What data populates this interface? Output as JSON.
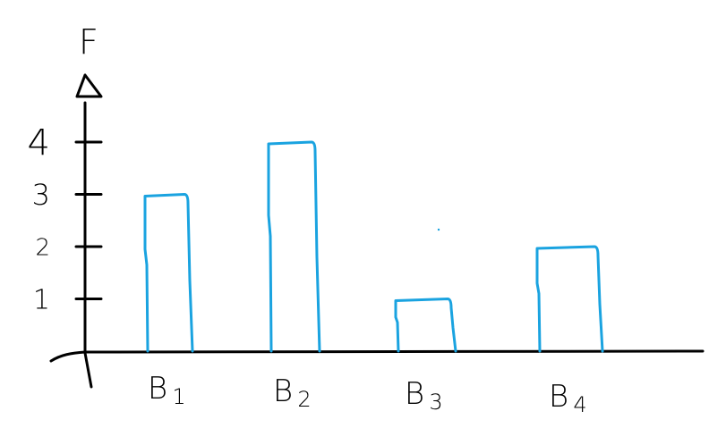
{
  "chart_data": {
    "type": "bar",
    "ylabel": "F",
    "categories": [
      {
        "base": "B",
        "sub": "1"
      },
      {
        "base": "B",
        "sub": "2"
      },
      {
        "base": "B",
        "sub": "3"
      },
      {
        "base": "B",
        "sub": "4"
      }
    ],
    "values": [
      3,
      4,
      1,
      2
    ],
    "yticks": [
      "1",
      "2",
      "3",
      "4"
    ],
    "ylim": [
      0,
      4.5
    ],
    "grid": false,
    "legend": "none",
    "colors": {
      "bar": "#1aa3e0",
      "axis": "#000000"
    }
  }
}
